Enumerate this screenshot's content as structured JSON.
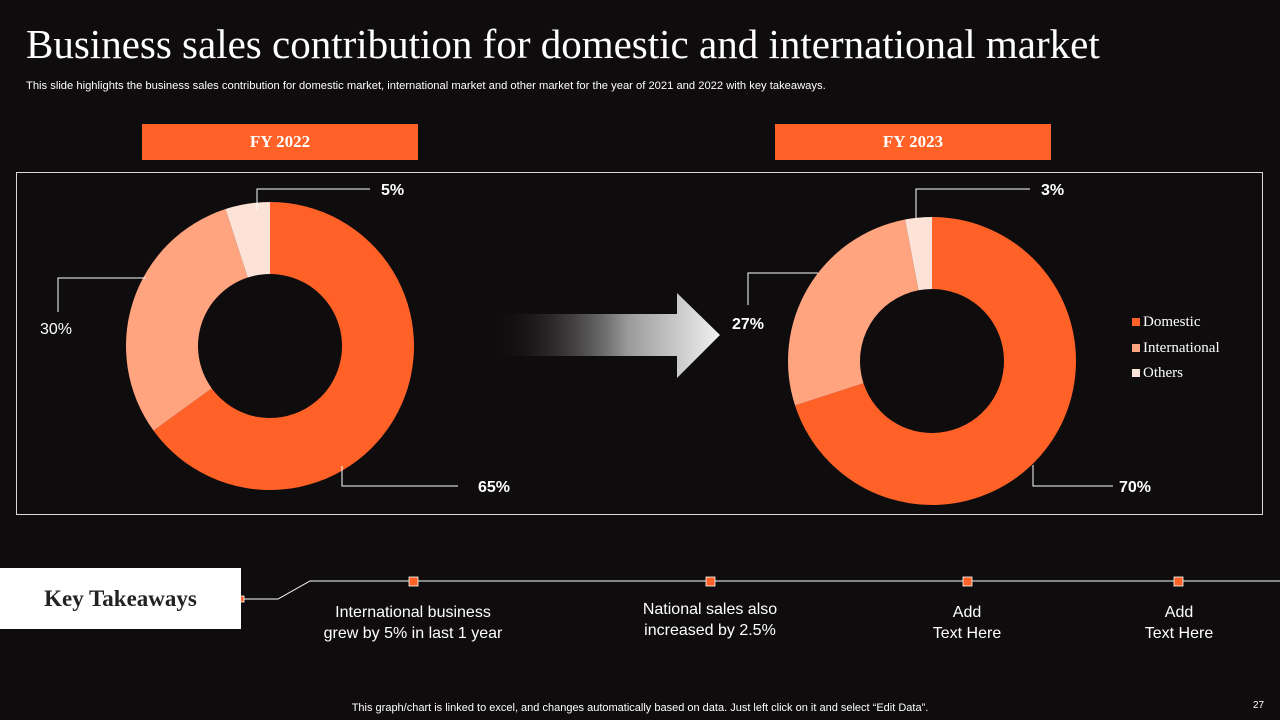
{
  "slide": {
    "title": "Business sales contribution for domestic and international market",
    "subtitle": "This slide highlights the business sales contribution for domestic market, international market and other market for the year  of 2021 and 2022 with key takeaways.",
    "footnote": "This graph/chart is linked to excel,  and changes automatically based on data. Just left click on it and select “Edit Data”.",
    "page_number": "27"
  },
  "colors": {
    "domestic": "#ff6126",
    "international": "#ffa47f",
    "others": "#fde3d7",
    "accent": "#ff6126",
    "background": "#0f0c0e"
  },
  "chart_data": [
    {
      "type": "pie",
      "variant": "donut",
      "title": "FY 2022",
      "categories": [
        "Domestic",
        "International",
        "Others"
      ],
      "values": [
        65,
        30,
        5
      ],
      "labels": [
        "65%",
        "30%",
        "5%"
      ]
    },
    {
      "type": "pie",
      "variant": "donut",
      "title": "FY 2023",
      "categories": [
        "Domestic",
        "International",
        "Others"
      ],
      "values": [
        70,
        27,
        3
      ],
      "labels": [
        "70%",
        "27%",
        "3%"
      ],
      "legend": {
        "position": "right",
        "entries": [
          "Domestic",
          "International",
          "Others"
        ]
      }
    }
  ],
  "key_takeaways": {
    "heading": "Key Takeaways",
    "items": [
      "International  business\ngrew by 5% in last 1 year",
      "National sales also\nincreased by 2.5%",
      "Add\nText Here",
      "Add\nText Here"
    ]
  }
}
